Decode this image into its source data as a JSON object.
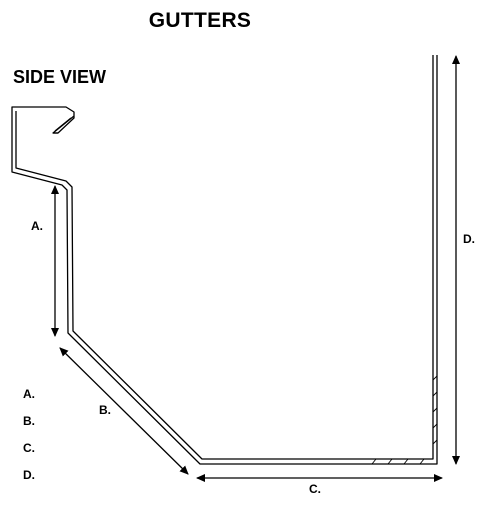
{
  "title": "GUTTERS",
  "view_label": "SIDE VIEW",
  "dimensions": {
    "a": "A.",
    "b": "B.",
    "c": "C.",
    "d": "D."
  },
  "legend": [
    "A.",
    "B.",
    "C.",
    "D."
  ]
}
